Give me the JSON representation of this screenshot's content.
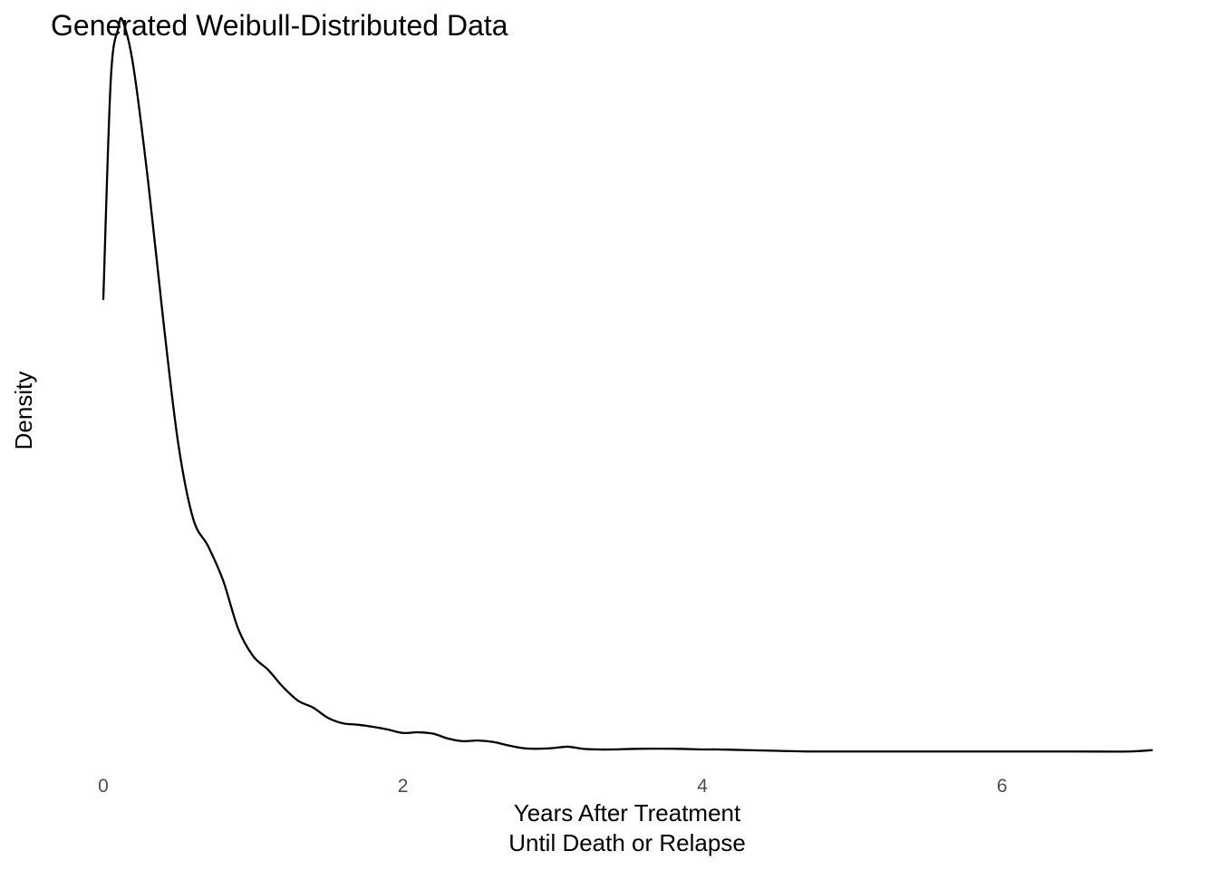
{
  "chart_data": {
    "type": "line",
    "title": "Generated Weibull-Distributed Data",
    "xlabel": "Years After Treatment",
    "xlabel_line2": "Until Death or Relapse",
    "ylabel": "Density",
    "xlim": [
      0,
      7
    ],
    "ylim": [
      0,
      1.08
    ],
    "x_ticks": [
      0,
      2,
      4,
      6
    ],
    "x_tick_labels": [
      "0",
      "2",
      "4",
      "6"
    ],
    "y_ticks": [],
    "grid": false,
    "legend": "none",
    "line_color": "#000000",
    "series": [
      {
        "x": [
          0,
          0.05,
          0.1,
          0.13,
          0.2,
          0.3,
          0.4,
          0.5,
          0.6,
          0.7,
          0.8,
          0.9,
          1.0,
          1.1,
          1.2,
          1.3,
          1.4,
          1.5,
          1.6,
          1.7,
          1.8,
          1.9,
          2.0,
          2.1,
          2.2,
          2.3,
          2.4,
          2.5,
          2.6,
          2.7,
          2.8,
          2.9,
          3.0,
          3.1,
          3.2,
          3.3,
          3.4,
          3.6,
          3.8,
          4.0,
          4.1,
          4.3,
          4.5,
          4.7,
          5.0,
          5.5,
          6.0,
          6.5,
          6.85,
          7.0
        ],
        "values": [
          0.66,
          0.98,
          1.055,
          1.065,
          1.0,
          0.83,
          0.63,
          0.45,
          0.34,
          0.3,
          0.25,
          0.18,
          0.14,
          0.12,
          0.095,
          0.075,
          0.065,
          0.05,
          0.042,
          0.04,
          0.037,
          0.033,
          0.028,
          0.029,
          0.027,
          0.02,
          0.016,
          0.017,
          0.015,
          0.01,
          0.006,
          0.005,
          0.006,
          0.008,
          0.005,
          0.004,
          0.004,
          0.005,
          0.005,
          0.004,
          0.004,
          0.003,
          0.002,
          0.001,
          0.001,
          0.001,
          0.001,
          0.001,
          0.001,
          0.003
        ]
      }
    ]
  }
}
